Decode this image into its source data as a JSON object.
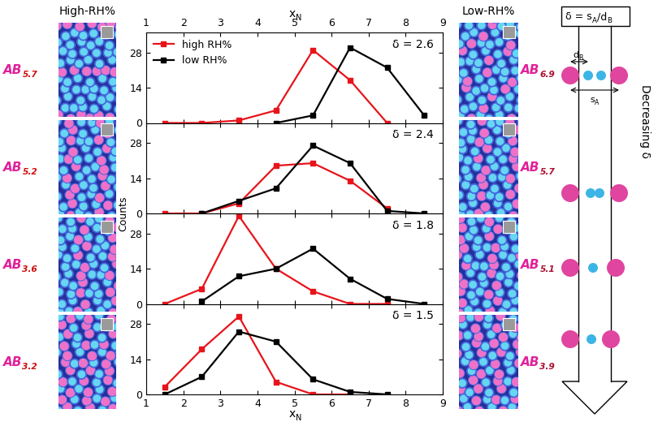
{
  "chart_data": [
    {
      "type": "line",
      "annotation": "δ = 2.6",
      "xlim": [
        1,
        9
      ],
      "xticks": [
        1,
        2,
        3,
        4,
        5,
        6,
        7,
        8,
        9
      ],
      "ylim": [
        0,
        36
      ],
      "yticks": [
        0,
        14,
        28
      ],
      "legend": "upper left",
      "series": [
        {
          "name": "high RH%",
          "color": "#e8141b",
          "marker": "square",
          "line_style": "solid",
          "x": [
            1.5,
            2.5,
            3.5,
            4.5,
            5.5,
            6.5,
            7.5
          ],
          "values": [
            0,
            0,
            1,
            5,
            29,
            17,
            0
          ]
        },
        {
          "name": "low RH%",
          "color": "#000000",
          "marker": "square",
          "line_style": "solid",
          "x": [
            4.5,
            5.5,
            6.5,
            7.5,
            8.5
          ],
          "values": [
            0,
            3,
            30,
            22,
            3
          ]
        }
      ]
    },
    {
      "type": "line",
      "annotation": "δ = 2.4",
      "xlim": [
        1,
        9
      ],
      "xticks": [
        1,
        2,
        3,
        4,
        5,
        6,
        7,
        8,
        9
      ],
      "ylim": [
        0,
        36
      ],
      "yticks": [
        0,
        14,
        28
      ],
      "tick_labels": "y",
      "series": [
        {
          "name": "high RH%",
          "color": "#e8141b",
          "marker": "square",
          "line_style": "solid",
          "x": [
            1.5,
            2.5,
            3.5,
            4.5,
            5.5,
            6.5,
            7.5
          ],
          "values": [
            0,
            0,
            4,
            19,
            20,
            13,
            2
          ]
        },
        {
          "name": "low RH%",
          "color": "#000000",
          "marker": "square",
          "line_style": "solid",
          "x": [
            2.5,
            3.5,
            4.5,
            5.5,
            6.5,
            7.5,
            8.5
          ],
          "values": [
            0,
            5,
            10,
            27,
            20,
            1,
            0
          ]
        }
      ]
    },
    {
      "type": "line",
      "annotation": "δ = 1.8",
      "xlim": [
        1,
        9
      ],
      "xticks": [
        1,
        2,
        3,
        4,
        5,
        6,
        7,
        8,
        9
      ],
      "ylim": [
        0,
        36
      ],
      "yticks": [
        0,
        14,
        28
      ],
      "tick_labels": "y",
      "series": [
        {
          "name": "high RH%",
          "color": "#e8141b",
          "marker": "square",
          "line_style": "solid",
          "x": [
            1.5,
            2.5,
            3.5,
            4.5,
            5.5,
            6.5,
            7.5
          ],
          "values": [
            0,
            6,
            35,
            14,
            5,
            0,
            0
          ]
        },
        {
          "name": "low RH%",
          "color": "#000000",
          "marker": "square",
          "line_style": "solid",
          "x": [
            2.5,
            3.5,
            4.5,
            5.5,
            6.5,
            7.5,
            8.5
          ],
          "values": [
            1,
            11,
            14,
            22,
            10,
            2,
            0
          ]
        }
      ]
    },
    {
      "type": "line",
      "annotation": "δ = 1.5",
      "xlim": [
        1,
        9
      ],
      "xticks": [
        1,
        2,
        3,
        4,
        5,
        6,
        7,
        8,
        9
      ],
      "ylim": [
        0,
        36
      ],
      "yticks": [
        0,
        14,
        28
      ],
      "series": [
        {
          "name": "high RH%",
          "color": "#e8141b",
          "marker": "square",
          "line_style": "solid",
          "x": [
            1.5,
            2.5,
            3.5,
            4.5,
            5.5,
            6.5
          ],
          "values": [
            3,
            18,
            31,
            5,
            0,
            0
          ]
        },
        {
          "name": "low RH%",
          "color": "#000000",
          "marker": "square",
          "line_style": "solid",
          "x": [
            1.5,
            2.5,
            3.5,
            4.5,
            5.5,
            6.5,
            7.5
          ],
          "values": [
            0,
            7,
            25,
            21,
            6,
            1,
            0
          ]
        }
      ]
    }
  ],
  "labels": {
    "left_title": "High-RH%",
    "right_title": "Low-RH%",
    "xlabel": [
      {
        "text": "x"
      },
      {
        "text": "N",
        "sub": true
      }
    ],
    "ylabel": "Counts"
  },
  "left_images": [
    [
      {
        "text": "AB"
      },
      {
        "text": "5.7",
        "sub": true
      }
    ],
    [
      {
        "text": "AB"
      },
      {
        "text": "5.2",
        "sub": true
      }
    ],
    [
      {
        "text": "AB"
      },
      {
        "text": "3.6",
        "sub": true
      }
    ],
    [
      {
        "text": "AB"
      },
      {
        "text": "3.2",
        "sub": true
      }
    ]
  ],
  "right_images": [
    [
      {
        "text": "AB"
      },
      {
        "text": "6.9",
        "sub": true
      }
    ],
    [
      {
        "text": "AB"
      },
      {
        "text": "5.7",
        "sub": true
      }
    ],
    [
      {
        "text": "AB"
      },
      {
        "text": "5.1",
        "sub": true
      }
    ],
    [
      {
        "text": "AB"
      },
      {
        "text": "3.9",
        "sub": true
      }
    ]
  ],
  "diagram": {
    "header": [
      {
        "text": "δ = s"
      },
      {
        "text": "A",
        "sub": true
      },
      {
        "text": "/d"
      },
      {
        "text": "B",
        "sub": true
      }
    ],
    "d_label": [
      {
        "text": "d"
      },
      {
        "text": "B",
        "sub": true
      }
    ],
    "s_label": [
      {
        "text": "s"
      },
      {
        "text": "A",
        "sub": true
      }
    ],
    "arrow_label": "Decreasing δ"
  }
}
